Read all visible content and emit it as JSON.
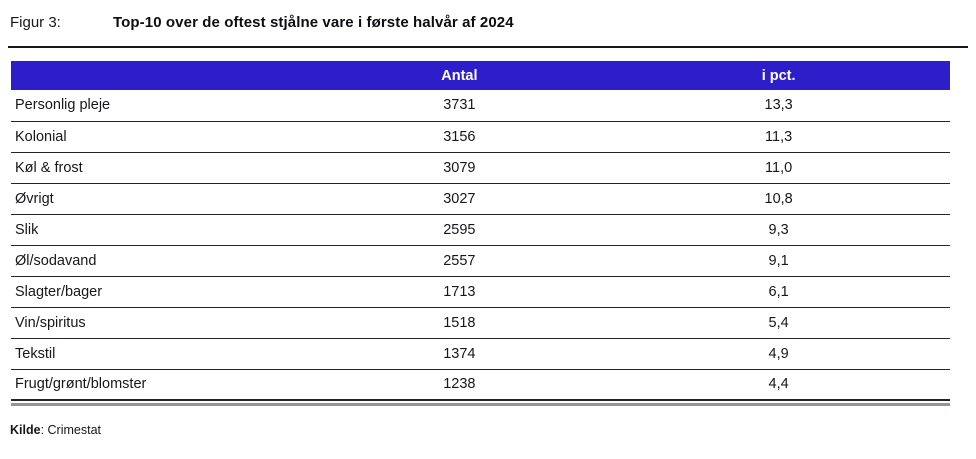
{
  "figure_label": "Figur 3:",
  "figure_title": "Top-10 over de oftest stjålne vare i første halvår af 2024",
  "source_label": "Kilde",
  "source_value": ": Crimestat",
  "colors": {
    "header_bg": "#2e1ec9",
    "header_text": "#ffffff",
    "row_separator": "#232329",
    "bottom_bar_gray": "#8f989d",
    "text": "#17171c",
    "background": "#ffffff"
  },
  "chart_data": {
    "type": "table",
    "title": "Top-10 over de oftest stjålne vare i første halvår af 2024",
    "columns": [
      "",
      "Antal",
      "i pct."
    ],
    "rows": [
      {
        "label": "Personlig pleje",
        "antal": "3731",
        "pct": "13,3"
      },
      {
        "label": "Kolonial",
        "antal": "3156",
        "pct": "11,3"
      },
      {
        "label": "Køl & frost",
        "antal": "3079",
        "pct": "11,0"
      },
      {
        "label": "Øvrigt",
        "antal": "3027",
        "pct": "10,8"
      },
      {
        "label": "Slik",
        "antal": "2595",
        "pct": "9,3"
      },
      {
        "label": "Øl/sodavand",
        "antal": "2557",
        "pct": "9,1"
      },
      {
        "label": "Slagter/bager",
        "antal": "1713",
        "pct": "6,1"
      },
      {
        "label": "Vin/spiritus",
        "antal": "1518",
        "pct": "5,4"
      },
      {
        "label": "Tekstil",
        "antal": "1374",
        "pct": "4,9"
      },
      {
        "label": "Frugt/grønt/blomster",
        "antal": "1238",
        "pct": "4,4"
      }
    ],
    "source": "Kilde: Crimestat"
  }
}
